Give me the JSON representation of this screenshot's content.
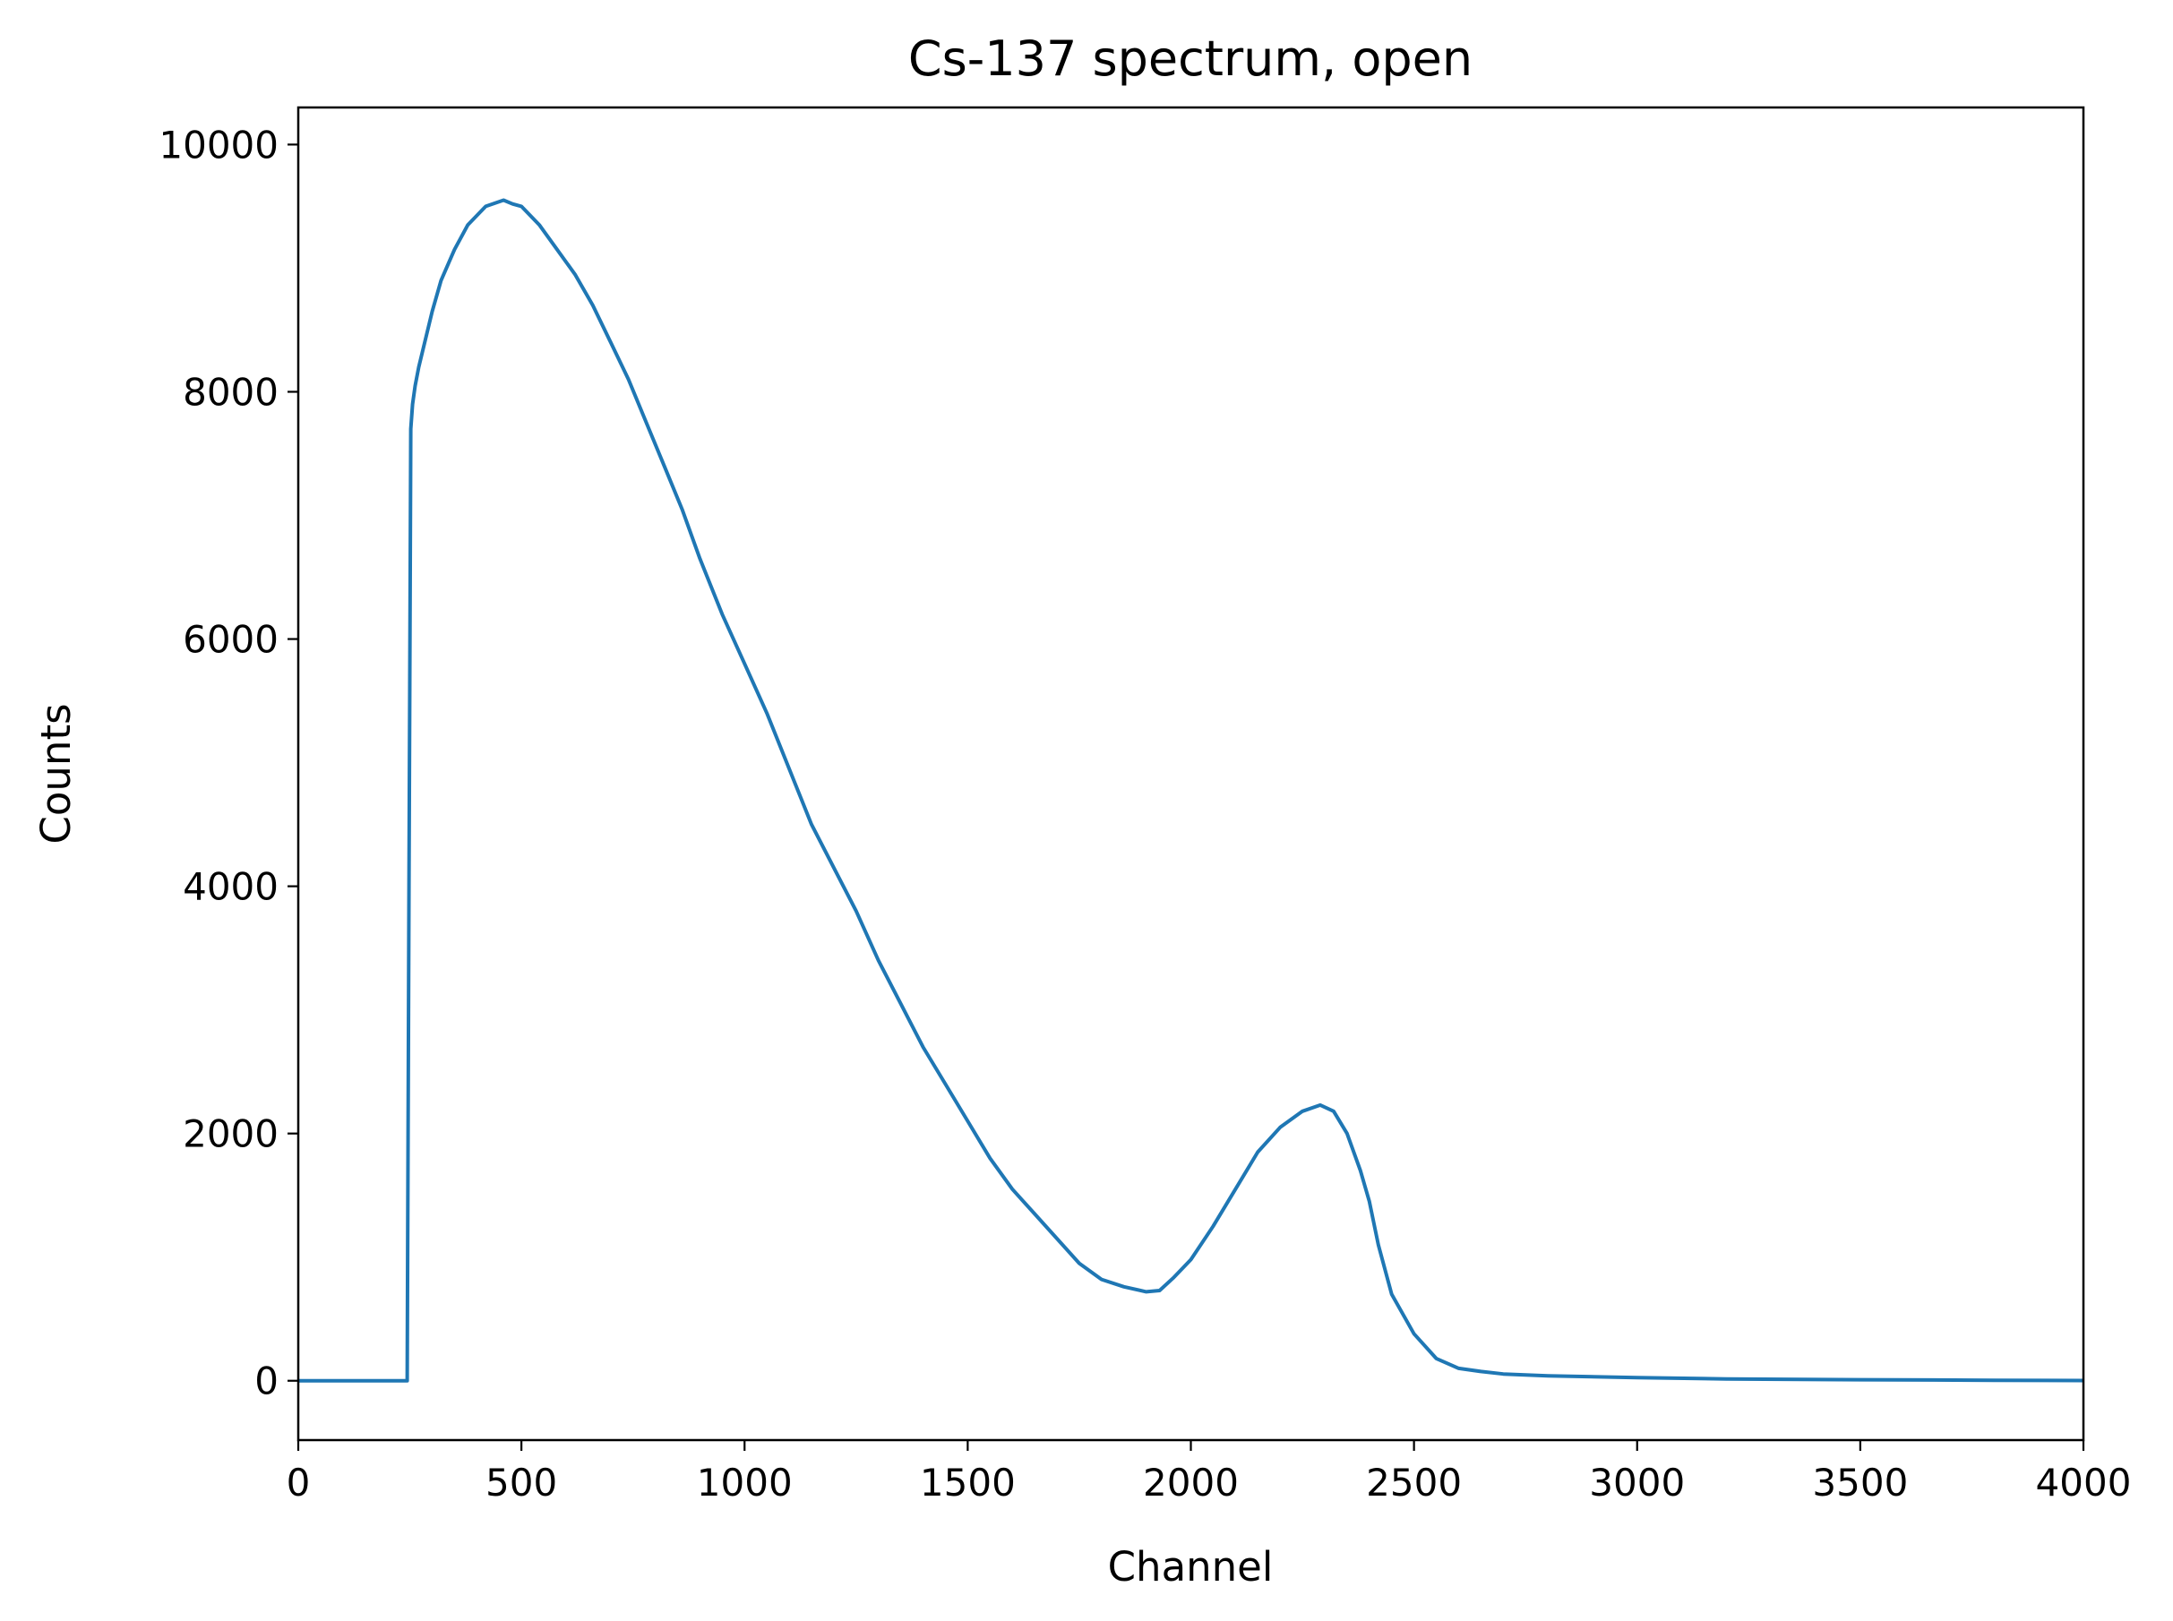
{
  "chart_data": {
    "type": "line",
    "title": "Cs-137 spectrum, open",
    "xlabel": "Channel",
    "ylabel": "Counts",
    "xlim": [
      0,
      4000
    ],
    "ylim": [
      -480,
      10300
    ],
    "xticks": [
      0,
      500,
      1000,
      1500,
      2000,
      2500,
      3000,
      3500,
      4000
    ],
    "yticks": [
      0,
      2000,
      4000,
      6000,
      8000,
      10000
    ],
    "grid": false,
    "legend": "none",
    "series": [
      {
        "color": "#1f77b4",
        "x": [
          0,
          100,
          200,
          240,
          244,
          248,
          252,
          256,
          262,
          270,
          280,
          300,
          320,
          350,
          380,
          420,
          460,
          480,
          500,
          540,
          580,
          620,
          660,
          700,
          740,
          780,
          820,
          860,
          900,
          950,
          1000,
          1050,
          1100,
          1150,
          1200,
          1250,
          1300,
          1350,
          1400,
          1450,
          1500,
          1550,
          1600,
          1650,
          1700,
          1750,
          1800,
          1850,
          1900,
          1930,
          1960,
          2000,
          2050,
          2100,
          2150,
          2200,
          2250,
          2290,
          2320,
          2350,
          2380,
          2400,
          2420,
          2450,
          2500,
          2550,
          2600,
          2650,
          2700,
          2800,
          3000,
          3200,
          3500,
          3800,
          4000
        ],
        "y": [
          0,
          0,
          0,
          0,
          0,
          4000,
          7700,
          7900,
          8050,
          8200,
          8350,
          8650,
          8900,
          9150,
          9350,
          9500,
          9550,
          9520,
          9500,
          9350,
          9150,
          8950,
          8700,
          8400,
          8100,
          7750,
          7400,
          7050,
          6650,
          6200,
          5800,
          5400,
          4950,
          4500,
          4150,
          3800,
          3400,
          3050,
          2700,
          2400,
          2100,
          1800,
          1550,
          1350,
          1150,
          950,
          820,
          760,
          720,
          730,
          830,
          980,
          1250,
          1550,
          1850,
          2050,
          2180,
          2230,
          2180,
          2000,
          1700,
          1450,
          1100,
          700,
          380,
          180,
          100,
          75,
          55,
          40,
          25,
          15,
          8,
          4,
          2
        ]
      }
    ]
  }
}
